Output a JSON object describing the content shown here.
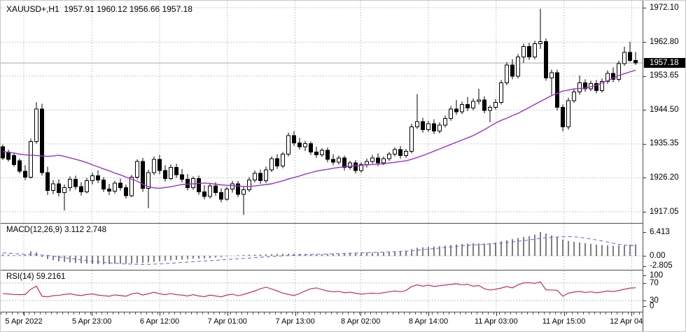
{
  "header": {
    "symbol_period": "XAUUSD+,H1",
    "ohlc": {
      "open": "1957.91",
      "high": "1960.12",
      "low": "1956.66",
      "close": "1957.18"
    }
  },
  "price_axis": {
    "ticks": [
      "1972.10",
      "1962.80",
      "1953.65",
      "1944.50",
      "1935.35",
      "1926.20",
      "1917.05"
    ],
    "current_price": "1957.18"
  },
  "macd_panel": {
    "name": "MACD(12,26,9)",
    "values": "3.112 2.748",
    "axis_ticks": [
      "6.413",
      "0.00",
      "-2.805"
    ]
  },
  "rsi_panel": {
    "name": "RSI(14)",
    "value": "59.2161",
    "axis_ticks": [
      "100",
      "70",
      "30",
      "0"
    ]
  },
  "time_axis": {
    "ticks": [
      {
        "label": "5 Apr 2022",
        "bar": 3.75
      },
      {
        "label": "5 Apr 23:00",
        "bar": 15.9
      },
      {
        "label": "6 Apr 12:00",
        "bar": 28.0
      },
      {
        "label": "7 Apr 01:00",
        "bar": 40.1
      },
      {
        "label": "7 Apr 13:00",
        "bar": 52.2
      },
      {
        "label": "8 Apr 02:00",
        "bar": 63.9
      },
      {
        "label": "8 Apr 14:00",
        "bar": 76.0
      },
      {
        "label": "11 Apr 03:00",
        "bar": 88.1
      },
      {
        "label": "11 Apr 15:00",
        "bar": 100.2
      },
      {
        "label": "12 Apr 04:00",
        "bar": 112.3
      }
    ]
  },
  "colors": {
    "background": "#ffffff",
    "text": "#000000",
    "grid": "#c9c9c9",
    "bull_body": "#ffffff",
    "bear_body": "#000000",
    "outline": "#000000",
    "ma_line": "#9933cc",
    "macd_hist": "#000000",
    "macd_signal": "#8055d5",
    "rsi_line": "#c2185b",
    "bid_line": "#a8a8a8",
    "badge_bg": "#000000",
    "badge_text": "#ffffff",
    "separator": "#4d4d4d"
  },
  "chart_data": [
    {
      "type": "candlestick",
      "symbol": "XAUUSD+",
      "timeframe": "H1",
      "title": "XAUUSD+,H1 1957.91 1960.12 1956.66 1957.18",
      "y_ticks": [
        1972.1,
        1962.8,
        1953.65,
        1944.5,
        1935.35,
        1926.2,
        1917.05
      ],
      "current_price": 1957.18,
      "overlay_line_name": "moving-average",
      "ohlc": [
        [
          1934.6,
          1935.2,
          1931.0,
          1931.6
        ],
        [
          1933.2,
          1933.8,
          1930.6,
          1931.2
        ],
        [
          1932.2,
          1932.8,
          1929.2,
          1929.8
        ],
        [
          1930.8,
          1931.4,
          1927.4,
          1928.0
        ],
        [
          1928.0,
          1929.6,
          1925.6,
          1926.4
        ],
        [
          1926.4,
          1936.8,
          1926.0,
          1936.0
        ],
        [
          1936.0,
          1946.6,
          1935.4,
          1944.8
        ],
        [
          1944.8,
          1946.2,
          1926.8,
          1927.6
        ],
        [
          1927.6,
          1929.2,
          1921.6,
          1922.8
        ],
        [
          1922.8,
          1925.6,
          1921.8,
          1924.6
        ],
        [
          1924.6,
          1925.8,
          1921.2,
          1922.2
        ],
        [
          1922.2,
          1924.4,
          1917.4,
          1923.6
        ],
        [
          1923.6,
          1926.6,
          1922.6,
          1925.8
        ],
        [
          1925.8,
          1926.8,
          1923.0,
          1923.8
        ],
        [
          1923.8,
          1925.0,
          1921.4,
          1922.4
        ],
        [
          1922.4,
          1926.2,
          1922.0,
          1925.4
        ],
        [
          1925.4,
          1927.6,
          1924.4,
          1926.8
        ],
        [
          1926.8,
          1928.2,
          1924.8,
          1925.6
        ],
        [
          1925.6,
          1926.4,
          1922.4,
          1923.2
        ],
        [
          1923.2,
          1924.6,
          1921.6,
          1922.6
        ],
        [
          1922.6,
          1925.4,
          1922.0,
          1924.8
        ],
        [
          1924.8,
          1926.0,
          1922.8,
          1923.6
        ],
        [
          1923.6,
          1924.4,
          1920.6,
          1921.4
        ],
        [
          1921.4,
          1927.0,
          1921.0,
          1926.4
        ],
        [
          1926.4,
          1931.2,
          1925.8,
          1930.6
        ],
        [
          1930.6,
          1931.6,
          1922.4,
          1923.4
        ],
        [
          1923.4,
          1928.4,
          1918.0,
          1927.6
        ],
        [
          1927.6,
          1932.0,
          1927.0,
          1931.2
        ],
        [
          1931.2,
          1932.4,
          1927.2,
          1928.2
        ],
        [
          1928.2,
          1929.6,
          1925.2,
          1926.0
        ],
        [
          1926.0,
          1929.8,
          1925.6,
          1929.0
        ],
        [
          1929.0,
          1930.0,
          1926.2,
          1927.0
        ],
        [
          1927.0,
          1928.6,
          1925.0,
          1925.8
        ],
        [
          1925.8,
          1927.2,
          1922.8,
          1923.6
        ],
        [
          1923.6,
          1926.6,
          1923.0,
          1926.0
        ],
        [
          1926.0,
          1926.8,
          1921.6,
          1922.4
        ],
        [
          1922.4,
          1924.2,
          1920.4,
          1921.2
        ],
        [
          1921.2,
          1924.6,
          1920.6,
          1924.0
        ],
        [
          1924.0,
          1925.0,
          1921.4,
          1922.2
        ],
        [
          1922.2,
          1923.4,
          1919.6,
          1920.4
        ],
        [
          1920.4,
          1923.8,
          1920.0,
          1923.2
        ],
        [
          1923.2,
          1925.4,
          1922.2,
          1924.6
        ],
        [
          1924.6,
          1925.4,
          1921.0,
          1921.8
        ],
        [
          1921.8,
          1924.0,
          1916.2,
          1923.0
        ],
        [
          1923.0,
          1926.4,
          1922.4,
          1925.6
        ],
        [
          1925.6,
          1928.2,
          1925.0,
          1927.4
        ],
        [
          1927.4,
          1928.4,
          1924.6,
          1925.4
        ],
        [
          1925.4,
          1929.2,
          1924.8,
          1928.4
        ],
        [
          1928.4,
          1932.0,
          1927.8,
          1931.4
        ],
        [
          1931.4,
          1932.6,
          1928.6,
          1929.4
        ],
        [
          1929.4,
          1933.2,
          1928.8,
          1932.6
        ],
        [
          1932.6,
          1938.4,
          1932.0,
          1937.6
        ],
        [
          1937.6,
          1938.8,
          1934.8,
          1935.6
        ],
        [
          1935.6,
          1937.0,
          1933.8,
          1934.6
        ],
        [
          1934.6,
          1936.2,
          1933.4,
          1935.4
        ],
        [
          1935.4,
          1936.0,
          1932.4,
          1933.2
        ],
        [
          1933.2,
          1934.6,
          1931.6,
          1932.4
        ],
        [
          1932.4,
          1934.2,
          1931.8,
          1933.6
        ],
        [
          1933.6,
          1934.4,
          1930.4,
          1931.2
        ],
        [
          1931.2,
          1932.6,
          1929.6,
          1930.4
        ],
        [
          1930.4,
          1932.2,
          1929.8,
          1931.6
        ],
        [
          1931.6,
          1932.2,
          1928.2,
          1929.0
        ],
        [
          1929.0,
          1930.8,
          1928.4,
          1930.2
        ],
        [
          1930.2,
          1931.0,
          1927.4,
          1928.2
        ],
        [
          1928.2,
          1930.4,
          1927.6,
          1929.8
        ],
        [
          1929.8,
          1931.4,
          1929.0,
          1930.6
        ],
        [
          1930.6,
          1932.4,
          1930.0,
          1931.6
        ],
        [
          1931.6,
          1932.8,
          1929.4,
          1930.2
        ],
        [
          1930.2,
          1932.0,
          1929.6,
          1931.4
        ],
        [
          1931.4,
          1933.2,
          1930.8,
          1932.6
        ],
        [
          1932.6,
          1934.4,
          1932.0,
          1933.8
        ],
        [
          1933.8,
          1934.8,
          1931.4,
          1932.2
        ],
        [
          1932.2,
          1934.0,
          1931.6,
          1933.4
        ],
        [
          1933.4,
          1940.8,
          1932.8,
          1940.0
        ],
        [
          1940.0,
          1948.8,
          1939.4,
          1941.4
        ],
        [
          1941.4,
          1942.4,
          1938.4,
          1939.2
        ],
        [
          1939.2,
          1941.6,
          1938.6,
          1940.8
        ],
        [
          1940.8,
          1942.0,
          1938.0,
          1938.8
        ],
        [
          1938.8,
          1941.2,
          1938.2,
          1940.4
        ],
        [
          1940.4,
          1943.0,
          1939.8,
          1942.2
        ],
        [
          1942.2,
          1945.6,
          1941.6,
          1944.8
        ],
        [
          1944.8,
          1947.2,
          1943.2,
          1944.0
        ],
        [
          1944.0,
          1946.8,
          1943.4,
          1946.0
        ],
        [
          1946.0,
          1948.0,
          1944.2,
          1945.0
        ],
        [
          1945.0,
          1947.6,
          1944.4,
          1946.8
        ],
        [
          1946.8,
          1950.2,
          1946.0,
          1947.2
        ],
        [
          1947.2,
          1948.2,
          1943.6,
          1944.4
        ],
        [
          1944.4,
          1945.8,
          1941.2,
          1945.2
        ],
        [
          1945.2,
          1947.4,
          1944.6,
          1946.6
        ],
        [
          1946.6,
          1952.6,
          1946.0,
          1951.8
        ],
        [
          1951.8,
          1957.4,
          1951.2,
          1956.6
        ],
        [
          1956.6,
          1958.2,
          1952.8,
          1953.6
        ],
        [
          1953.6,
          1959.6,
          1953.0,
          1958.8
        ],
        [
          1958.8,
          1962.4,
          1957.2,
          1961.6
        ],
        [
          1961.6,
          1962.6,
          1958.0,
          1958.8
        ],
        [
          1958.8,
          1963.2,
          1958.2,
          1962.4
        ],
        [
          1962.4,
          1971.8,
          1961.0,
          1963.0
        ],
        [
          1963.0,
          1963.8,
          1952.4,
          1953.2
        ],
        [
          1953.2,
          1955.4,
          1948.6,
          1954.6
        ],
        [
          1954.6,
          1955.4,
          1944.4,
          1945.2
        ],
        [
          1945.2,
          1946.0,
          1938.8,
          1940.0
        ],
        [
          1940.0,
          1947.8,
          1939.2,
          1947.0
        ],
        [
          1947.0,
          1950.2,
          1946.4,
          1949.4
        ],
        [
          1949.4,
          1953.8,
          1948.6,
          1951.8
        ],
        [
          1951.8,
          1952.8,
          1949.4,
          1950.2
        ],
        [
          1950.2,
          1952.4,
          1949.6,
          1951.6
        ],
        [
          1951.6,
          1952.6,
          1949.0,
          1949.8
        ],
        [
          1949.8,
          1953.0,
          1949.2,
          1952.2
        ],
        [
          1952.2,
          1955.2,
          1951.6,
          1954.4
        ],
        [
          1954.4,
          1956.0,
          1952.0,
          1952.8
        ],
        [
          1952.8,
          1957.8,
          1952.2,
          1957.0
        ],
        [
          1957.0,
          1961.6,
          1956.4,
          1960.0
        ],
        [
          1960.0,
          1962.9,
          1957.5,
          1957.91
        ],
        [
          1957.91,
          1960.12,
          1956.66,
          1957.18
        ]
      ],
      "ma": [
        1933.3,
        1933.1,
        1932.9,
        1932.6,
        1932.4,
        1932.3,
        1932.2,
        1932.1,
        1932.0,
        1932.1,
        1932.3,
        1932.0,
        1931.6,
        1931.2,
        1930.8,
        1930.3,
        1929.7,
        1929.2,
        1928.6,
        1928.1,
        1927.5,
        1927.0,
        1926.4,
        1925.9,
        1925.3,
        1924.5,
        1923.8,
        1923.5,
        1923.4,
        1923.6,
        1923.8,
        1924.1,
        1924.4,
        1924.5,
        1924.6,
        1924.7,
        1924.8,
        1924.7,
        1924.5,
        1924.3,
        1924.2,
        1924.1,
        1924.0,
        1923.9,
        1923.9,
        1924.0,
        1924.2,
        1924.4,
        1924.6,
        1925.0,
        1925.4,
        1925.9,
        1926.3,
        1926.7,
        1927.2,
        1927.6,
        1928.0,
        1928.3,
        1928.5,
        1928.8,
        1929.0,
        1929.2,
        1929.3,
        1929.5,
        1929.6,
        1929.7,
        1929.8,
        1929.9,
        1930.0,
        1930.2,
        1930.4,
        1930.6,
        1930.8,
        1931.2,
        1931.7,
        1932.2,
        1932.8,
        1933.4,
        1934.0,
        1934.6,
        1935.2,
        1935.8,
        1936.4,
        1937.0,
        1937.6,
        1938.4,
        1939.2,
        1940.1,
        1941.0,
        1941.7,
        1942.3,
        1943.0,
        1943.6,
        1944.4,
        1945.2,
        1946.0,
        1946.8,
        1947.6,
        1948.4,
        1949.0,
        1949.6,
        1949.9,
        1950.2,
        1950.3,
        1950.4,
        1950.8,
        1951.2,
        1951.8,
        1952.4,
        1953.1,
        1953.8,
        1954.3,
        1954.8,
        1955.2
      ]
    },
    {
      "type": "bar",
      "subtype": "macd",
      "name": "MACD(12,26,9)",
      "macd_value": 3.112,
      "signal_value": 2.748,
      "y_ticks": [
        6.413,
        0.0,
        -2.805
      ],
      "histogram": [
        0.4,
        0.3,
        0.2,
        0.2,
        0.3,
        1.2,
        1.0,
        -0.3,
        -0.9,
        -1.2,
        -1.5,
        -1.65,
        -1.8,
        -1.9,
        -2.0,
        -2.1,
        -2.2,
        -2.25,
        -2.3,
        -2.25,
        -2.2,
        -2.15,
        -2.1,
        -2.05,
        -2.0,
        -1.9,
        -1.8,
        -1.65,
        -1.5,
        -1.35,
        -1.2,
        -1.1,
        -1.0,
        -0.9,
        -0.8,
        -0.75,
        -0.7,
        -0.6,
        -0.45,
        -0.3,
        -0.15,
        0.0,
        0.15,
        0.25,
        0.3,
        0.3,
        0.35,
        0.4,
        0.45,
        0.5,
        0.55,
        0.6,
        0.6,
        0.55,
        0.5,
        0.45,
        0.4,
        0.45,
        0.5,
        0.55,
        0.6,
        0.65,
        0.7,
        0.75,
        0.8,
        0.85,
        0.9,
        0.95,
        1.0,
        1.05,
        1.1,
        1.2,
        1.4,
        1.8,
        2.2,
        2.3,
        2.4,
        2.5,
        2.6,
        2.75,
        2.9,
        3.05,
        3.2,
        3.3,
        3.4,
        3.35,
        3.3,
        3.4,
        3.6,
        3.9,
        4.2,
        4.5,
        4.8,
        5.1,
        5.3,
        5.7,
        6.413,
        6.0,
        5.5,
        5.0,
        4.4,
        4.0,
        3.8,
        3.6,
        3.4,
        3.2,
        3.0,
        2.9,
        2.8,
        2.7,
        2.8,
        2.95,
        3.05,
        3.112
      ],
      "signal": [
        0.8,
        0.7,
        0.6,
        0.5,
        0.4,
        0.35,
        0.3,
        0.2,
        0.1,
        -0.1,
        -0.3,
        -0.5,
        -0.7,
        -0.9,
        -1.1,
        -1.3,
        -1.5,
        -1.65,
        -1.8,
        -1.9,
        -2.0,
        -2.1,
        -2.2,
        -2.25,
        -2.3,
        -2.3,
        -2.3,
        -2.25,
        -2.2,
        -2.1,
        -2.0,
        -1.9,
        -1.8,
        -1.7,
        -1.6,
        -1.5,
        -1.4,
        -1.3,
        -1.2,
        -1.1,
        -1.0,
        -0.9,
        -0.8,
        -0.7,
        -0.6,
        -0.5,
        -0.4,
        -0.3,
        -0.2,
        -0.1,
        0.0,
        0.08,
        0.15,
        0.22,
        0.3,
        0.35,
        0.4,
        0.45,
        0.5,
        0.55,
        0.6,
        0.65,
        0.7,
        0.75,
        0.8,
        0.85,
        0.9,
        0.95,
        1.0,
        1.05,
        1.1,
        1.17,
        1.25,
        1.37,
        1.5,
        1.65,
        1.8,
        1.95,
        2.1,
        2.25,
        2.4,
        2.55,
        2.7,
        2.82,
        2.95,
        3.02,
        3.1,
        3.2,
        3.3,
        3.45,
        3.6,
        3.77,
        3.95,
        4.12,
        4.3,
        4.5,
        4.7,
        4.85,
        5.0,
        5.08,
        5.15,
        5.2,
        5.15,
        5.0,
        4.8,
        4.55,
        4.3,
        4.0,
        3.7,
        3.4,
        3.1,
        2.9,
        2.78,
        2.748
      ]
    },
    {
      "type": "line",
      "subtype": "rsi",
      "name": "RSI(14)",
      "value": 59.2161,
      "levels": [
        70,
        30
      ],
      "values": [
        46,
        45,
        44,
        43.5,
        44,
        56,
        63,
        40,
        38.5,
        41,
        42,
        44,
        45.5,
        43,
        41.5,
        44,
        45,
        42.5,
        41,
        40,
        43,
        41.5,
        40,
        45,
        47.5,
        42.5,
        45.5,
        49,
        45.5,
        43.5,
        46,
        43.5,
        42.5,
        40.5,
        43.5,
        40.5,
        39,
        42.5,
        40.5,
        38.5,
        42.5,
        44.5,
        41,
        44,
        48,
        52,
        57,
        60.5,
        56.5,
        52,
        47,
        44,
        41.5,
        46,
        52,
        57,
        59,
        55,
        52,
        50,
        51,
        48,
        49,
        47,
        44.5,
        46,
        47,
        46,
        48,
        50,
        52,
        50,
        53,
        62,
        66,
        63,
        65,
        62.5,
        64,
        65.5,
        67,
        68.5,
        66,
        67,
        63,
        64.5,
        57,
        54,
        56,
        58.5,
        62,
        59,
        66,
        70.5,
        70.8,
        69.5,
        72.6,
        54.5,
        54,
        53.5,
        40,
        47,
        49.5,
        51,
        48.5,
        50,
        48,
        49.5,
        52,
        50.5,
        53,
        56,
        58.5,
        59.22
      ]
    }
  ]
}
